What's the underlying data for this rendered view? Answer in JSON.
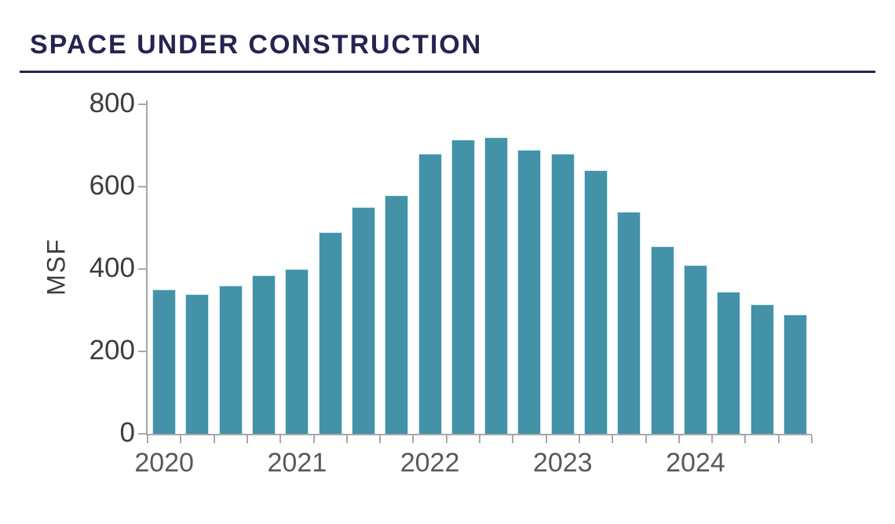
{
  "header": {
    "title": "SPACE UNDER CONSTRUCTION"
  },
  "chart_data": {
    "type": "bar",
    "title": "SPACE UNDER CONSTRUCTION",
    "ylabel": "MSF",
    "xlabel": "",
    "ylim": [
      0,
      800
    ],
    "yticks": [
      0,
      200,
      400,
      600,
      800
    ],
    "grid": false,
    "legend": false,
    "year_tick_labels": [
      "2020",
      "2021",
      "2022",
      "2023",
      "2024"
    ],
    "x": [
      "2020 Q1",
      "2020 Q2",
      "2020 Q3",
      "2020 Q4",
      "2021 Q1",
      "2021 Q2",
      "2021 Q3",
      "2021 Q4",
      "2022 Q1",
      "2022 Q2",
      "2022 Q3",
      "2022 Q4",
      "2023 Q1",
      "2023 Q2",
      "2023 Q3",
      "2023 Q4",
      "2024 Q1",
      "2024 Q2",
      "2024 Q3",
      "2024 Q4"
    ],
    "values": [
      350,
      340,
      360,
      385,
      400,
      490,
      550,
      580,
      680,
      715,
      720,
      690,
      680,
      640,
      540,
      455,
      410,
      345,
      315,
      290
    ],
    "colors": {
      "bar": "#4392a8",
      "bar_edge": "#cde7ef",
      "axis": "#a8a8a8",
      "title": "#252451",
      "tick_label": "#3d3d3d",
      "year_label": "#595959"
    }
  }
}
